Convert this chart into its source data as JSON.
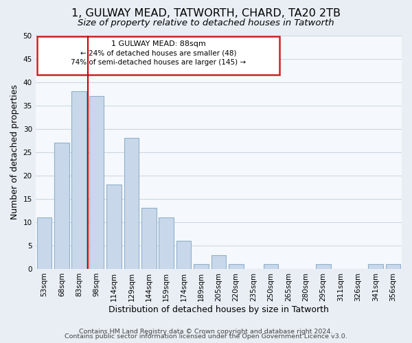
{
  "title": "1, GULWAY MEAD, TATWORTH, CHARD, TA20 2TB",
  "subtitle": "Size of property relative to detached houses in Tatworth",
  "xlabel": "Distribution of detached houses by size in Tatworth",
  "ylabel": "Number of detached properties",
  "bar_color": "#c8d8ea",
  "bar_edge_color": "#8fb0cc",
  "categories": [
    "53sqm",
    "68sqm",
    "83sqm",
    "98sqm",
    "114sqm",
    "129sqm",
    "144sqm",
    "159sqm",
    "174sqm",
    "189sqm",
    "205sqm",
    "220sqm",
    "235sqm",
    "250sqm",
    "265sqm",
    "280sqm",
    "295sqm",
    "311sqm",
    "326sqm",
    "341sqm",
    "356sqm"
  ],
  "values": [
    11,
    27,
    38,
    37,
    18,
    28,
    13,
    11,
    6,
    1,
    3,
    1,
    0,
    1,
    0,
    0,
    1,
    0,
    0,
    1,
    1
  ],
  "ylim": [
    0,
    50
  ],
  "yticks": [
    0,
    5,
    10,
    15,
    20,
    25,
    30,
    35,
    40,
    45,
    50
  ],
  "property_line_label": "1 GULWAY MEAD: 88sqm",
  "annotation_line1": "← 24% of detached houses are smaller (48)",
  "annotation_line2": "74% of semi-detached houses are larger (145) →",
  "vline_color": "#cc0000",
  "footer1": "Contains HM Land Registry data © Crown copyright and database right 2024.",
  "footer2": "Contains public sector information licensed under the Open Government Licence v3.0.",
  "background_color": "#e8eef4",
  "plot_background": "#f5f8fc",
  "grid_color": "#c8d4e0",
  "title_fontsize": 11.5,
  "subtitle_fontsize": 9.5,
  "axis_label_fontsize": 9,
  "tick_fontsize": 7.5,
  "footer_fontsize": 6.8
}
